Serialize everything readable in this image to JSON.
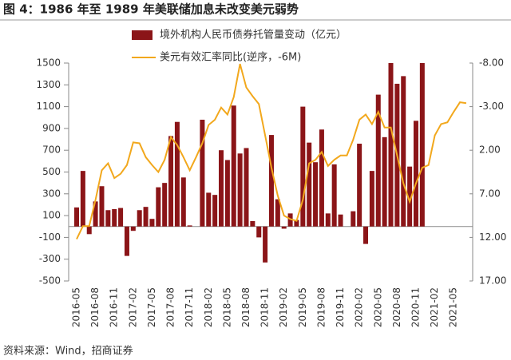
{
  "chart_data": {
    "type": "bar_line",
    "title": "图 4：1986 年至 1989 年美联储加息未改变美元弱势",
    "source": "资料来源：Wind，招商证券",
    "categories": [
      "2016-05",
      null,
      null,
      "2016-08",
      null,
      null,
      "2016-11",
      null,
      null,
      "2017-02",
      null,
      null,
      "2017-05",
      null,
      null,
      "2017-08",
      null,
      null,
      "2017-11",
      null,
      null,
      "2018-02",
      null,
      null,
      "2018-05",
      null,
      null,
      "2018-08",
      null,
      null,
      "2018-11",
      null,
      null,
      "2019-02",
      null,
      null,
      "2019-05",
      null,
      null,
      "2019-08",
      null,
      null,
      "2019-11",
      null,
      null,
      "2020-02",
      null,
      null,
      "2020-05",
      null,
      null,
      "2020-08",
      null,
      null,
      "2020-11",
      null,
      null,
      "2021-02",
      null,
      null,
      "2021-05",
      null,
      null
    ],
    "series": [
      {
        "name": "境外机构人民币债券托管量变动（亿元）",
        "type": "bar",
        "color": "#8b1518",
        "values": [
          175,
          510,
          -70,
          230,
          370,
          150,
          160,
          170,
          -270,
          -40,
          150,
          180,
          70,
          360,
          400,
          830,
          960,
          450,
          10,
          null,
          980,
          310,
          290,
          700,
          610,
          1110,
          670,
          720,
          50,
          -100,
          -330,
          840,
          250,
          -20,
          120,
          60,
          1100,
          770,
          590,
          890,
          120,
          570,
          110,
          null,
          140,
          760,
          -160,
          510,
          1210,
          820,
          1500,
          1310,
          1380,
          550,
          970,
          1500,
          null,
          null,
          null,
          null,
          null,
          null,
          null
        ]
      },
      {
        "name": "美元有效汇率同比(逆序，-6M)",
        "type": "line",
        "axis": "y2",
        "color": "#f2a81d",
        "values": [
          12.2,
          10.7,
          10.7,
          7.7,
          4.3,
          3.5,
          5.2,
          4.7,
          3.7,
          1.1,
          1.2,
          2.8,
          3.7,
          4.5,
          3.1,
          0.5,
          1.4,
          2.8,
          4.3,
          2.8,
          1.2,
          -0.9,
          -1.5,
          -2.9,
          -2.1,
          -4.1,
          -7.9,
          -5.2,
          -4.2,
          -3.3,
          0.3,
          4.0,
          7.2,
          9.5,
          9.9,
          10.1,
          7.7,
          3.5,
          3.1,
          2.2,
          3.8,
          3.1,
          2.6,
          2.6,
          0.8,
          -1.5,
          -2.1,
          -1.0,
          -2.4,
          -0.6,
          -0.6,
          2.6,
          5.8,
          7.9,
          5.8,
          4.0,
          3.7,
          0.3,
          -1.0,
          -1.2,
          -2.4,
          -3.5,
          -3.4
        ]
      }
    ],
    "ylim": [
      -500,
      1500
    ],
    "yticks": [
      -500,
      -300,
      -100,
      100,
      300,
      500,
      700,
      900,
      1100,
      1300,
      1500
    ],
    "y2lim": [
      17,
      -8
    ],
    "y2ticks": [
      {
        "value": -8,
        "label": "-8.00"
      },
      {
        "value": -3,
        "label": "-3.00"
      },
      {
        "value": 2,
        "label": "2.00"
      },
      {
        "value": 7,
        "label": "7.00"
      },
      {
        "value": 12,
        "label": "12.00"
      },
      {
        "value": 17,
        "label": "17.00"
      }
    ]
  }
}
